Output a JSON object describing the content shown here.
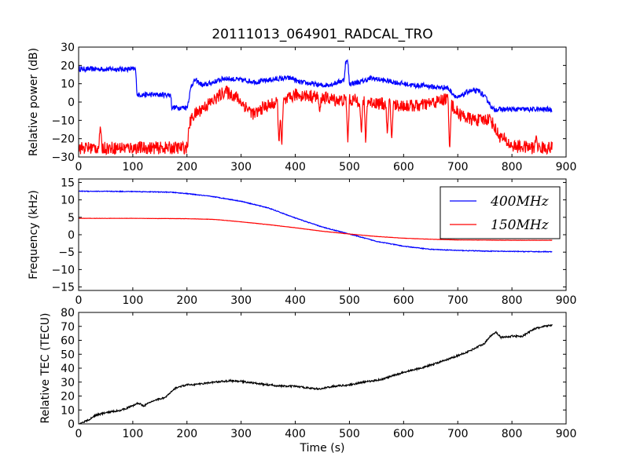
{
  "title": "20111013_064901_RADCAL_TRO",
  "colors": {
    "blue": "#0000ff",
    "red": "#ff0000",
    "black": "#000000"
  },
  "chart_data": [
    {
      "type": "line",
      "ylabel": "Relative power (dB)",
      "xlim": [
        0,
        900
      ],
      "ylim": [
        -30,
        30
      ],
      "xticks": [
        "0",
        "100",
        "200",
        "300",
        "400",
        "500",
        "600",
        "700",
        "800",
        "900"
      ],
      "yticks": [
        "−30",
        "−20",
        "−10",
        "0",
        "10",
        "20",
        "30"
      ],
      "series": [
        {
          "color": "blue",
          "noise": 1.4,
          "x": [
            0,
            105,
            108,
            170,
            172,
            200,
            203,
            208,
            215,
            230,
            250,
            270,
            300,
            330,
            350,
            380,
            395,
            405,
            430,
            450,
            470,
            490,
            493,
            497,
            500,
            520,
            540,
            560,
            580,
            600,
            620,
            640,
            660,
            680,
            700,
            720,
            740,
            755,
            765,
            800,
            840,
            875
          ],
          "y": [
            18,
            18,
            4,
            4,
            -3,
            -3,
            1,
            9,
            12,
            9,
            11,
            13,
            12,
            11,
            12,
            13,
            13,
            11,
            10,
            9,
            10,
            12,
            22,
            22,
            10,
            11,
            13,
            12,
            11,
            10,
            9,
            9,
            8,
            8,
            2,
            6,
            6,
            1,
            -4,
            -4,
            -4,
            -4
          ]
        },
        {
          "color": "red",
          "noise": 3.5,
          "x": [
            0,
            200,
            205,
            210,
            230,
            250,
            270,
            290,
            310,
            325,
            340,
            360,
            380,
            400,
            440,
            480,
            520,
            560,
            600,
            630,
            660,
            680,
            700,
            720,
            740,
            760,
            775,
            800,
            840,
            875
          ],
          "y": [
            -25,
            -25,
            -12,
            -8,
            -3,
            1,
            6,
            3,
            -3,
            -7,
            -3,
            -1,
            0,
            4,
            3,
            1,
            1,
            -1,
            -2,
            -2,
            0,
            2,
            -6,
            -9,
            -10,
            -9,
            -18,
            -24,
            -25,
            -25
          ],
          "spikes": [
            [
              40,
              -13
            ],
            [
              370,
              -24
            ],
            [
              375,
              -25
            ],
            [
              445,
              -6
            ],
            [
              497,
              -22
            ],
            [
              522,
              -18
            ],
            [
              530,
              -23
            ],
            [
              570,
              -18
            ],
            [
              578,
              -21
            ],
            [
              685,
              -27
            ],
            [
              845,
              -18
            ]
          ]
        }
      ]
    },
    {
      "type": "line",
      "ylabel": "Frequency (kHz)",
      "xlim": [
        0,
        900
      ],
      "ylim": [
        -16,
        16
      ],
      "xticks": [
        "0",
        "100",
        "200",
        "300",
        "400",
        "500",
        "600",
        "700",
        "800",
        "900"
      ],
      "yticks": [
        "−15",
        "−10",
        "−5",
        "0",
        "5",
        "10",
        "15"
      ],
      "legend": {
        "position": "top-right",
        "items": [
          "400MHz",
          "150MHz"
        ]
      },
      "series": [
        {
          "name": "400MHz",
          "color": "blue",
          "noise": 0.1,
          "x": [
            0,
            100,
            170,
            200,
            250,
            300,
            350,
            400,
            450,
            500,
            550,
            600,
            650,
            700,
            750,
            800,
            875
          ],
          "y": [
            12.5,
            12.4,
            12.2,
            11.8,
            10.9,
            9.6,
            7.7,
            4.8,
            2.2,
            0.2,
            -1.9,
            -3.3,
            -4.2,
            -4.5,
            -4.7,
            -4.8,
            -4.9
          ]
        },
        {
          "name": "150MHz",
          "color": "red",
          "noise": 0.03,
          "x": [
            0,
            100,
            200,
            250,
            300,
            350,
            400,
            450,
            500,
            550,
            600,
            650,
            700,
            800,
            875
          ],
          "y": [
            4.7,
            4.7,
            4.6,
            4.4,
            3.7,
            2.9,
            2.0,
            1.0,
            0.2,
            -0.5,
            -1.0,
            -1.3,
            -1.5,
            -1.6,
            -1.6
          ]
        }
      ]
    },
    {
      "type": "line",
      "xlabel": "Time (s)",
      "ylabel": "Relative TEC (TECU)",
      "xlim": [
        0,
        900
      ],
      "ylim": [
        0,
        80
      ],
      "xticks": [
        "0",
        "100",
        "200",
        "300",
        "400",
        "500",
        "600",
        "700",
        "800",
        "900"
      ],
      "yticks": [
        "0",
        "10",
        "20",
        "30",
        "40",
        "50",
        "60",
        "70",
        "80"
      ],
      "series": [
        {
          "color": "black",
          "noise": 0.6,
          "x": [
            0,
            20,
            30,
            50,
            80,
            100,
            110,
            120,
            140,
            160,
            180,
            200,
            220,
            250,
            280,
            300,
            320,
            350,
            380,
            400,
            420,
            445,
            470,
            500,
            520,
            560,
            600,
            640,
            680,
            720,
            750,
            760,
            770,
            780,
            800,
            820,
            840,
            860,
            875
          ],
          "y": [
            0,
            3,
            6,
            8,
            10,
            13,
            15,
            13,
            17,
            19,
            26,
            28,
            28.5,
            30,
            31,
            30.5,
            29.5,
            28,
            27,
            27,
            26,
            25,
            27,
            28,
            29.5,
            32,
            37,
            41,
            46,
            52,
            58,
            63,
            66,
            62,
            63,
            63,
            68,
            70,
            71
          ]
        }
      ]
    }
  ]
}
